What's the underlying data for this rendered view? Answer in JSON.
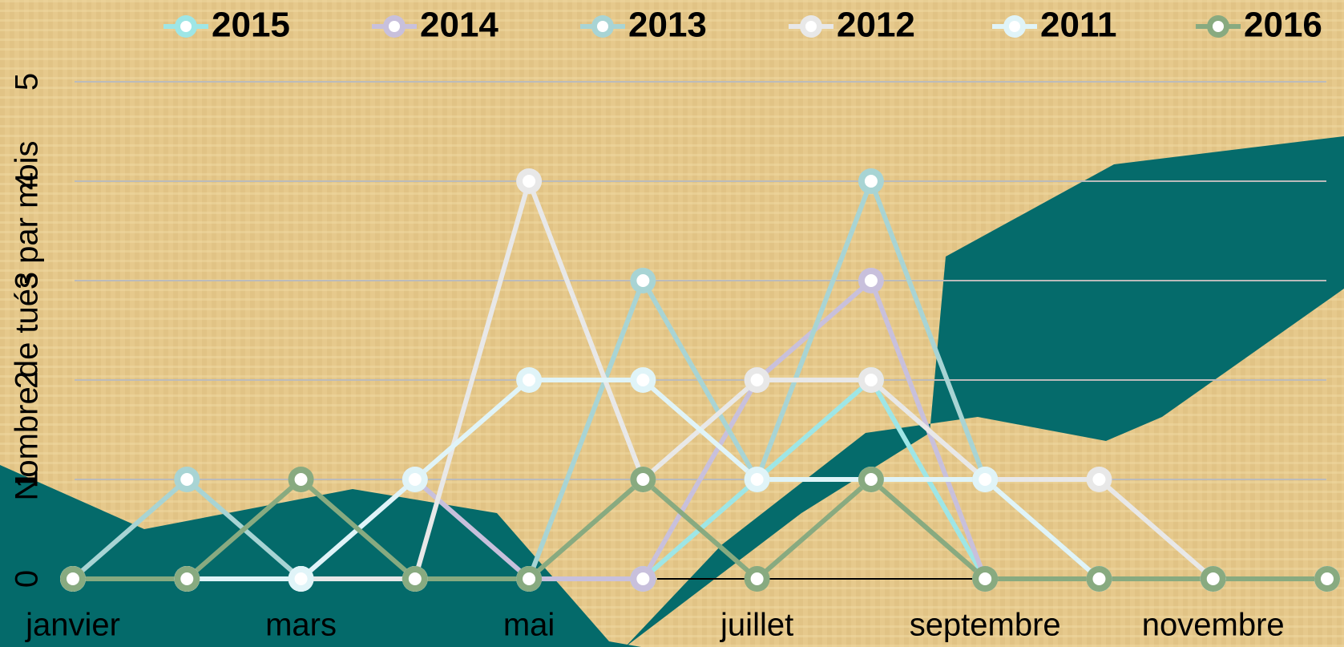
{
  "chart_data": {
    "type": "line",
    "y_label": "Nombre de tués par mois",
    "categories": [
      "janvier",
      null,
      "mars",
      null,
      "mai",
      null,
      "juillet",
      null,
      "septembre",
      null,
      "novembre",
      null
    ],
    "series": [
      {
        "name": "2015",
        "color": "#9ee6e6",
        "values": [
          0,
          0,
          0,
          0,
          0,
          0,
          1,
          2,
          0,
          0,
          0,
          0
        ]
      },
      {
        "name": "2014",
        "color": "#c8c0dc",
        "values": [
          0,
          0,
          0,
          1,
          0,
          0,
          2,
          3,
          0,
          0,
          0,
          0
        ]
      },
      {
        "name": "2013",
        "color": "#a8d4d4",
        "values": [
          0,
          1,
          0,
          0,
          0,
          3,
          1,
          4,
          1,
          0,
          0,
          0
        ]
      },
      {
        "name": "2012",
        "color": "#e8e8e8",
        "values": [
          0,
          0,
          0,
          0,
          4,
          1,
          2,
          2,
          1,
          1,
          0,
          0
        ]
      },
      {
        "name": "2011",
        "color": "#e0f4f8",
        "values": [
          0,
          0,
          0,
          1,
          2,
          2,
          1,
          1,
          1,
          0,
          0,
          0
        ]
      },
      {
        "name": "2016",
        "color": "#88aa80",
        "values": [
          0,
          0,
          1,
          0,
          0,
          1,
          0,
          1,
          0,
          0,
          0,
          0
        ]
      }
    ],
    "ylim": [
      0,
      5
    ],
    "yticks": [
      0,
      1,
      2,
      3,
      4,
      5
    ],
    "grid": true,
    "legend": "top"
  }
}
